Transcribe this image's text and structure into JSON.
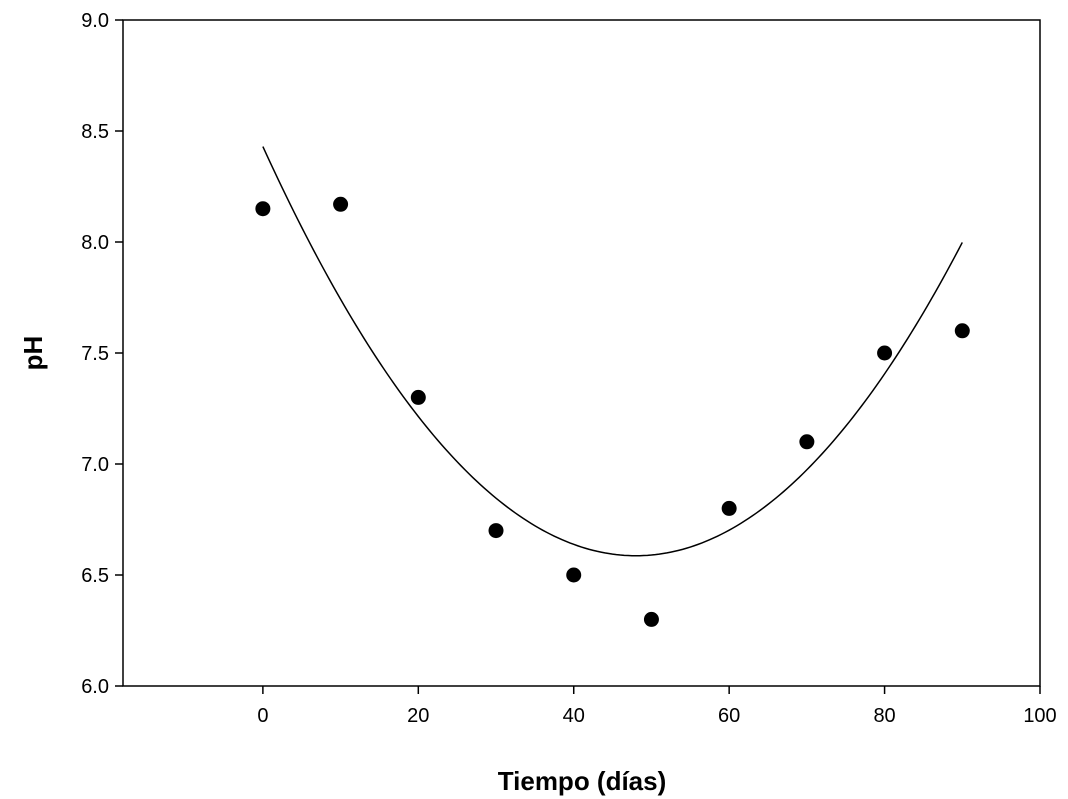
{
  "chart_data": {
    "type": "scatter",
    "title": "",
    "xlabel": "Tiempo (días)",
    "ylabel": "pH",
    "xlim": [
      -18,
      100
    ],
    "ylim": [
      6.0,
      9.0
    ],
    "xticks": [
      0,
      20,
      40,
      60,
      80,
      100
    ],
    "yticks": [
      6.0,
      6.5,
      7.0,
      7.5,
      8.0,
      8.5,
      9.0
    ],
    "xtick_labels": [
      "0",
      "20",
      "40",
      "60",
      "80",
      "100"
    ],
    "ytick_labels": [
      "6.0",
      "6.5",
      "7.0",
      "7.5",
      "8.0",
      "8.5",
      "9.0"
    ],
    "grid": false,
    "series": [
      {
        "type": "scatter",
        "x": [
          0,
          10,
          20,
          30,
          40,
          50,
          60,
          70,
          80,
          90
        ],
        "y": [
          8.15,
          8.17,
          7.3,
          6.7,
          6.5,
          6.3,
          6.8,
          7.1,
          7.5,
          7.6
        ],
        "color": "#000000"
      },
      {
        "type": "line",
        "fit": "quadratic",
        "x_range": [
          0,
          90
        ],
        "coefficients": [
          8.43,
          -0.0768,
          0.0008
        ],
        "color": "#000000"
      }
    ]
  }
}
